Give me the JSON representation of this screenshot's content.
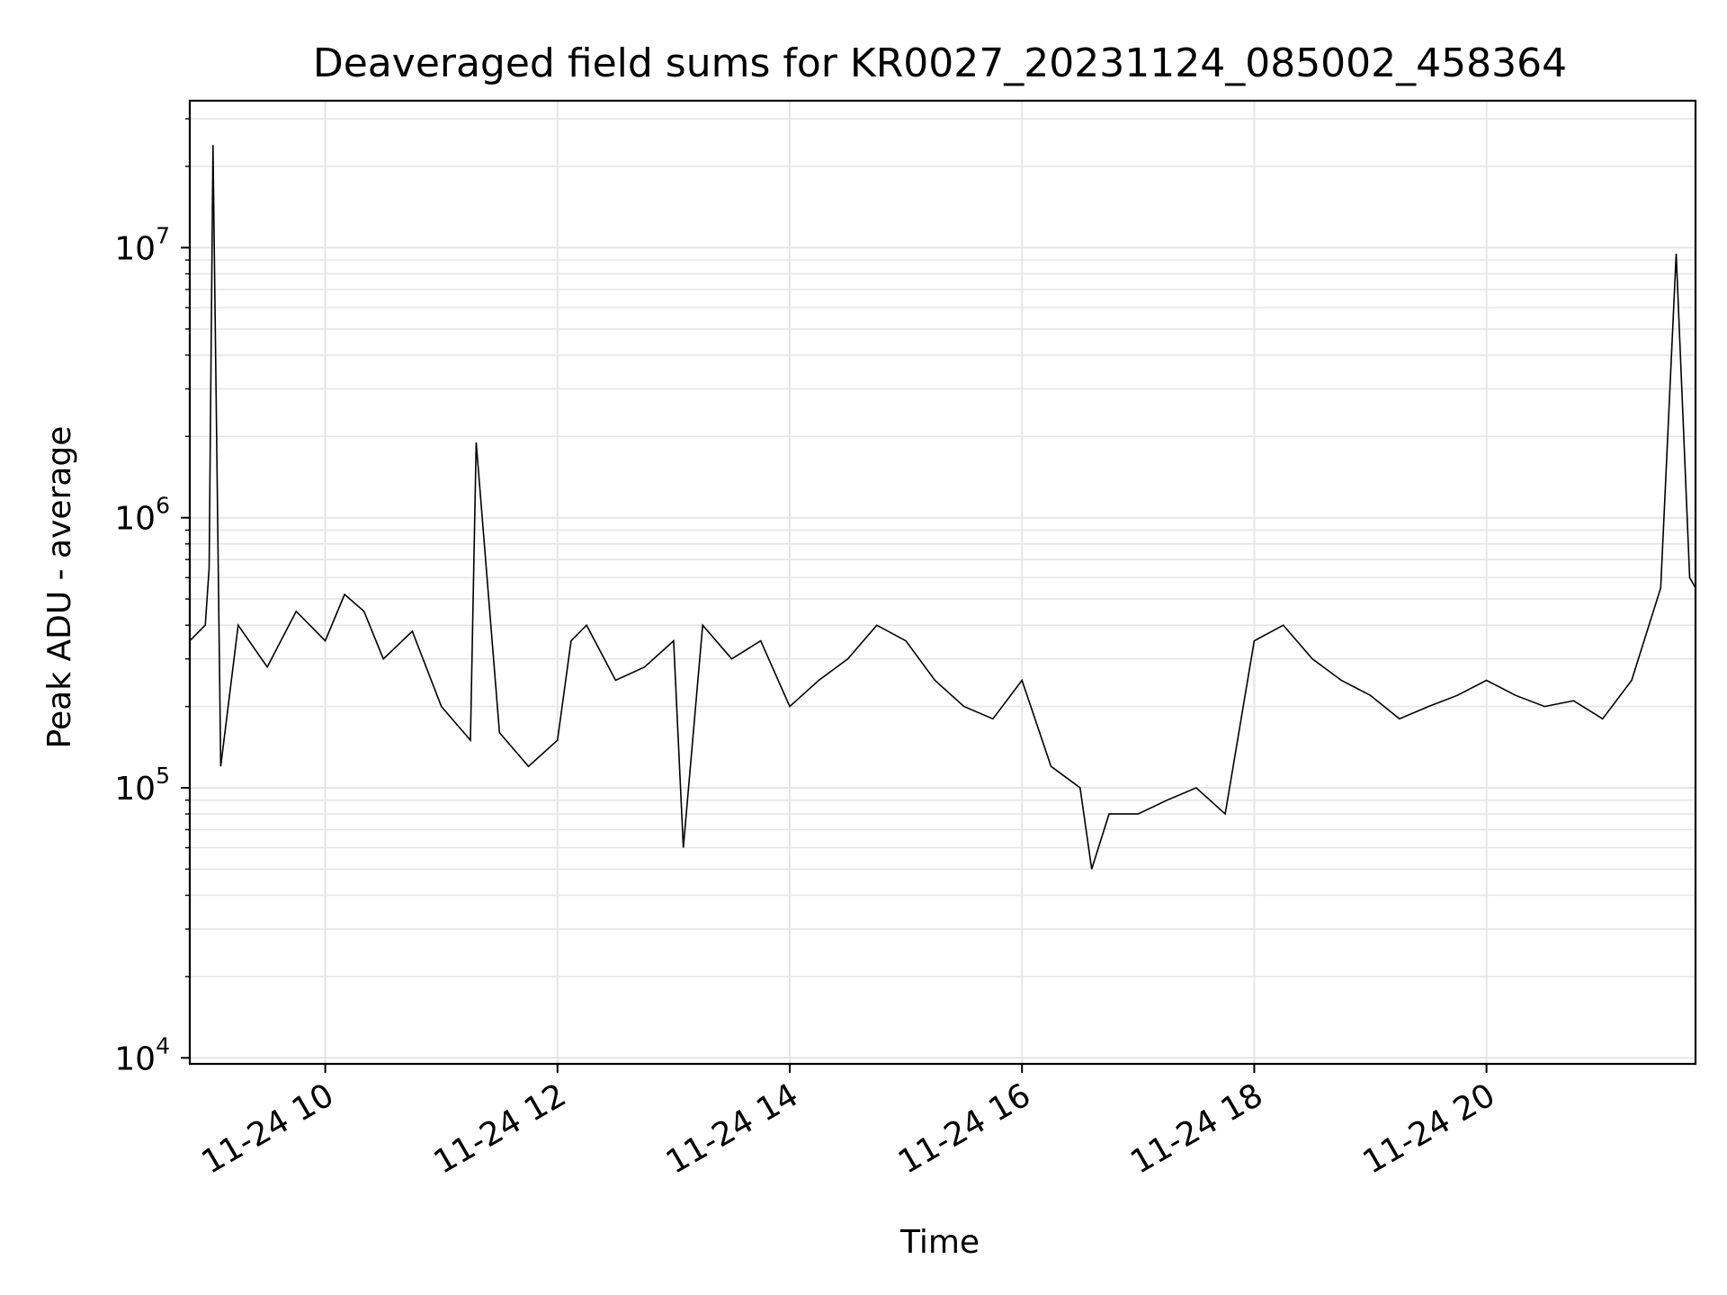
{
  "chart_data": {
    "type": "line",
    "title": "Deaveraged field sums for KR0027_20231124_085002_458364",
    "xlabel": "Time",
    "ylabel": "Peak ADU - average",
    "xscale": "time",
    "yscale": "log",
    "grid": true,
    "line_color": "#000000",
    "grid_color": "#e6e6e6",
    "xlim": [
      "2023-11-24 08:50",
      "2023-11-24 21:48"
    ],
    "ylim": [
      9500,
      35000000
    ],
    "x_ticks": [
      {
        "value": "2023-11-24 10:00",
        "label": "11-24 10"
      },
      {
        "value": "2023-11-24 12:00",
        "label": "11-24 12"
      },
      {
        "value": "2023-11-24 14:00",
        "label": "11-24 14"
      },
      {
        "value": "2023-11-24 16:00",
        "label": "11-24 16"
      },
      {
        "value": "2023-11-24 18:00",
        "label": "11-24 18"
      },
      {
        "value": "2023-11-24 20:00",
        "label": "11-24 20"
      }
    ],
    "y_ticks": [
      {
        "value": 10000,
        "base": "10",
        "exp": "4"
      },
      {
        "value": 100000,
        "base": "10",
        "exp": "5"
      },
      {
        "value": 1000000,
        "base": "10",
        "exp": "6"
      },
      {
        "value": 10000000,
        "base": "10",
        "exp": "7"
      }
    ],
    "series": [
      {
        "x": [
          "2023-11-24 08:50",
          "2023-11-24 08:58",
          "2023-11-24 09:00",
          "2023-11-24 09:02",
          "2023-11-24 09:06",
          "2023-11-24 09:15",
          "2023-11-24 09:30",
          "2023-11-24 09:45",
          "2023-11-24 10:00",
          "2023-11-24 10:10",
          "2023-11-24 10:20",
          "2023-11-24 10:30",
          "2023-11-24 10:45",
          "2023-11-24 11:00",
          "2023-11-24 11:15",
          "2023-11-24 11:18",
          "2023-11-24 11:30",
          "2023-11-24 11:45",
          "2023-11-24 12:00",
          "2023-11-24 12:07",
          "2023-11-24 12:15",
          "2023-11-24 12:30",
          "2023-11-24 12:45",
          "2023-11-24 13:00",
          "2023-11-24 13:05",
          "2023-11-24 13:15",
          "2023-11-24 13:30",
          "2023-11-24 13:45",
          "2023-11-24 14:00",
          "2023-11-24 14:15",
          "2023-11-24 14:30",
          "2023-11-24 14:45",
          "2023-11-24 15:00",
          "2023-11-24 15:15",
          "2023-11-24 15:30",
          "2023-11-24 15:45",
          "2023-11-24 16:00",
          "2023-11-24 16:15",
          "2023-11-24 16:30",
          "2023-11-24 16:36",
          "2023-11-24 16:45",
          "2023-11-24 17:00",
          "2023-11-24 17:15",
          "2023-11-24 17:30",
          "2023-11-24 17:45",
          "2023-11-24 18:00",
          "2023-11-24 18:15",
          "2023-11-24 18:30",
          "2023-11-24 18:45",
          "2023-11-24 19:00",
          "2023-11-24 19:15",
          "2023-11-24 19:30",
          "2023-11-24 19:45",
          "2023-11-24 20:00",
          "2023-11-24 20:15",
          "2023-11-24 20:30",
          "2023-11-24 20:45",
          "2023-11-24 21:00",
          "2023-11-24 21:15",
          "2023-11-24 21:30",
          "2023-11-24 21:38",
          "2023-11-24 21:45",
          "2023-11-24 21:48"
        ],
        "y": [
          350000,
          400000,
          650000,
          24000000,
          120000,
          400000,
          280000,
          450000,
          350000,
          520000,
          450000,
          300000,
          380000,
          200000,
          150000,
          1900000,
          160000,
          120000,
          150000,
          350000,
          400000,
          250000,
          280000,
          350000,
          60000,
          400000,
          300000,
          350000,
          200000,
          250000,
          300000,
          400000,
          350000,
          250000,
          200000,
          180000,
          250000,
          120000,
          100000,
          50000,
          80000,
          80000,
          90000,
          100000,
          80000,
          350000,
          400000,
          300000,
          250000,
          220000,
          180000,
          200000,
          220000,
          250000,
          220000,
          200000,
          210000,
          180000,
          250000,
          550000,
          9500000,
          600000,
          550000
        ]
      }
    ]
  }
}
